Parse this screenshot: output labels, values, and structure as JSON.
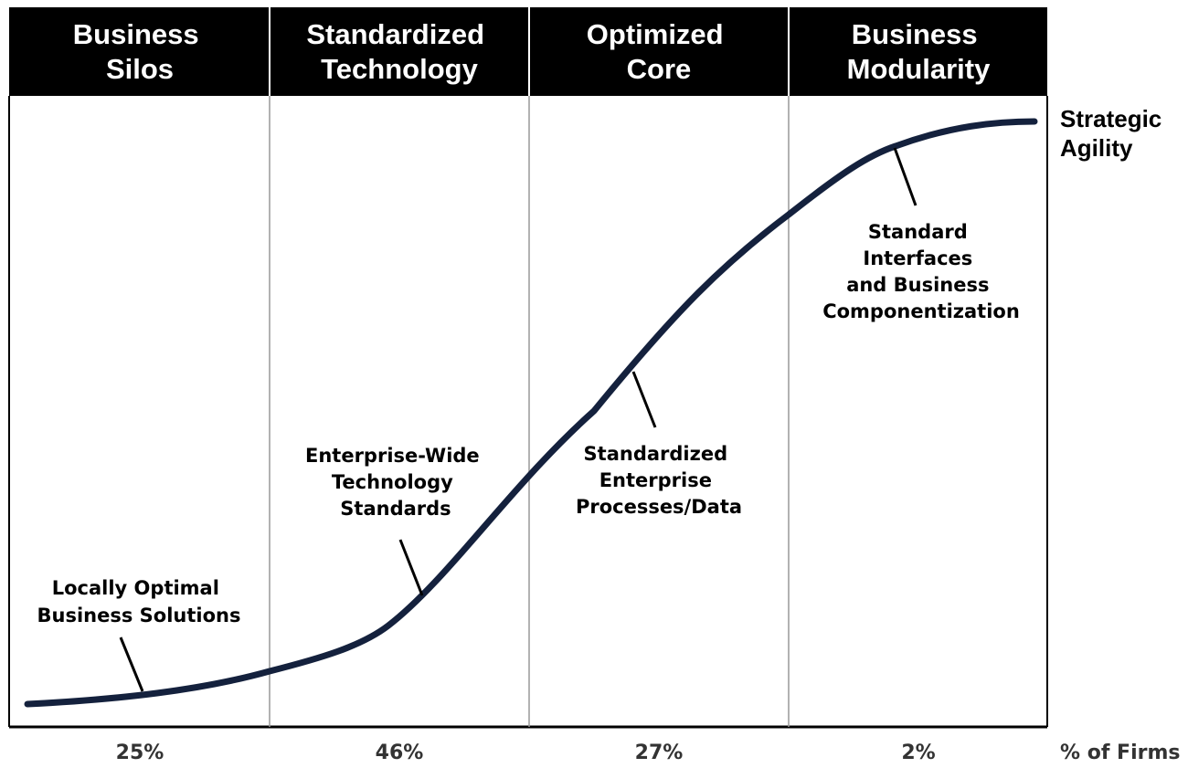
{
  "colors": {
    "header_background": "#000000",
    "header_text": "#ffffff",
    "curve": "#14213d",
    "divider": "#999999",
    "frame": "#000000",
    "text": "#000000",
    "percent_text": "#333333"
  },
  "stages": [
    {
      "line1": "Business",
      "line2": "Silos",
      "percent": "25%"
    },
    {
      "line1": "Standardized",
      "line2": "Technology",
      "percent": "46%"
    },
    {
      "line1": "Optimized",
      "line2": "Core",
      "percent": "27%"
    },
    {
      "line1": "Business",
      "line2": "Modularity",
      "percent": "2%"
    }
  ],
  "y_axis_label": {
    "line1": "Strategic",
    "line2": "Agility"
  },
  "x_axis_label": "% of Firms",
  "annotations": [
    {
      "lines": [
        "Locally Optimal",
        "Business Solutions"
      ]
    },
    {
      "lines": [
        "Enterprise-Wide",
        "Technology",
        "Standards"
      ]
    },
    {
      "lines": [
        "Standardized",
        "Enterprise",
        "Processes/Data"
      ]
    },
    {
      "lines": [
        "Standard",
        "Interfaces",
        "and Business",
        "Componentization"
      ]
    }
  ]
}
